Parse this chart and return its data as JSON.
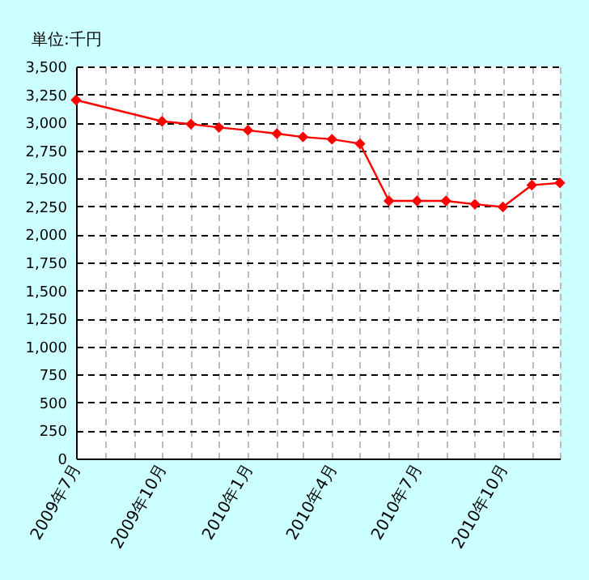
{
  "chart_data": {
    "type": "line",
    "ylabel": "単位:千円",
    "x": [
      "2009-07",
      "2009-10",
      "2009-11",
      "2009-12",
      "2010-01",
      "2010-02",
      "2010-03",
      "2010-04",
      "2010-05",
      "2010-06",
      "2010-07",
      "2010-08",
      "2010-09",
      "2010-10",
      "2010-11",
      "2010-12"
    ],
    "series": [
      {
        "color": "#ff0000",
        "values": [
          3200,
          3010,
          2985,
          2955,
          2930,
          2900,
          2870,
          2850,
          2810,
          2300,
          2300,
          2300,
          2270,
          2245,
          2440,
          2460
        ]
      }
    ],
    "xlim": [
      "2009-07",
      "2010-12"
    ],
    "xticks": [
      {
        "value": "2009-07",
        "label": "2009年7月"
      },
      {
        "value": "2009-08",
        "label": null
      },
      {
        "value": "2009-09",
        "label": null
      },
      {
        "value": "2009-10",
        "label": "2009年10月"
      },
      {
        "value": "2009-11",
        "label": null
      },
      {
        "value": "2009-12",
        "label": null
      },
      {
        "value": "2010-01",
        "label": "2010年1月"
      },
      {
        "value": "2010-02",
        "label": null
      },
      {
        "value": "2010-03",
        "label": null
      },
      {
        "value": "2010-04",
        "label": "2010年4月"
      },
      {
        "value": "2010-05",
        "label": null
      },
      {
        "value": "2010-06",
        "label": null
      },
      {
        "value": "2010-07",
        "label": "2010年7月"
      },
      {
        "value": "2010-08",
        "label": null
      },
      {
        "value": "2010-09",
        "label": null
      },
      {
        "value": "2010-10",
        "label": "2010年10月"
      },
      {
        "value": "2010-11",
        "label": null
      },
      {
        "value": "2010-12",
        "label": null
      }
    ],
    "ylim": [
      0,
      3500
    ],
    "yticks": [
      0,
      250,
      500,
      750,
      {
        "value": 1000,
        "label": "1,000"
      },
      {
        "value": 1250,
        "label": "1,250"
      },
      {
        "value": 1500,
        "label": "1,500"
      },
      {
        "value": 1750,
        "label": "1,750"
      },
      {
        "value": 2000,
        "label": "2,000"
      },
      {
        "value": 2250,
        "label": "2,250"
      },
      {
        "value": 2500,
        "label": "2,500"
      },
      {
        "value": 2750,
        "label": "2,750"
      },
      {
        "value": 3000,
        "label": "3,000"
      },
      {
        "value": 3250,
        "label": "3,250"
      },
      {
        "value": 3500,
        "label": "3,500"
      }
    ],
    "grid": true,
    "marker": "diamond",
    "line_style": "solid"
  }
}
